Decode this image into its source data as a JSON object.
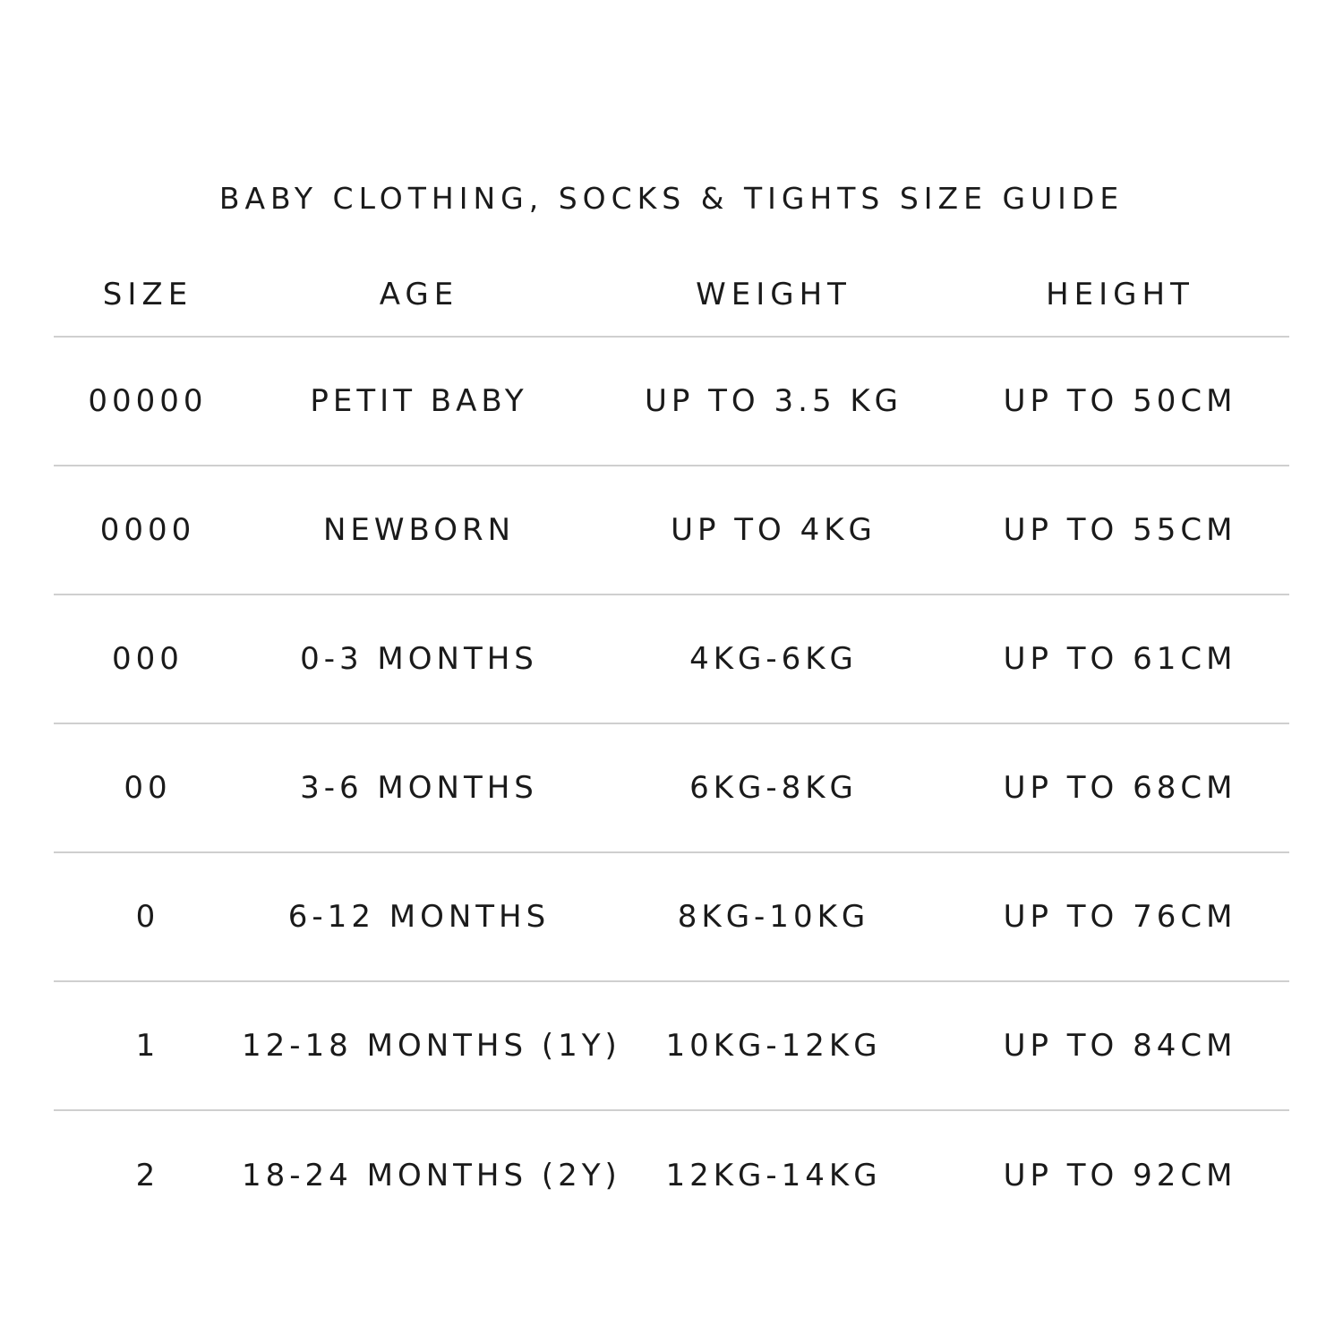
{
  "title": "BABY CLOTHING, SOCKS & TIGHTS SIZE GUIDE",
  "columns": [
    "SIZE",
    "AGE",
    "WEIGHT",
    "HEIGHT"
  ],
  "rows": [
    [
      "00000",
      "PETIT BABY",
      "UP TO 3.5 KG",
      "UP TO 50CM"
    ],
    [
      "0000",
      "NEWBORN",
      "UP TO 4KG",
      "UP TO 55CM"
    ],
    [
      "000",
      "0-3 MONTHS",
      "4KG-6KG",
      "UP TO 61CM"
    ],
    [
      "00",
      "3-6 MONTHS",
      "6KG-8KG",
      "UP TO 68CM"
    ],
    [
      "0",
      "6-12 MONTHS",
      "8KG-10KG",
      "UP TO 76CM"
    ],
    [
      "1",
      "12-18 MONTHS (1Y)",
      "10KG-12KG",
      "UP TO 84CM"
    ],
    [
      "2",
      "18-24 MONTHS (2Y)",
      "12KG-14KG",
      "UP TO 92CM"
    ]
  ],
  "colors": {
    "text": "#1a1a1a",
    "divider": "#cfcfcf",
    "background": "#ffffff"
  }
}
